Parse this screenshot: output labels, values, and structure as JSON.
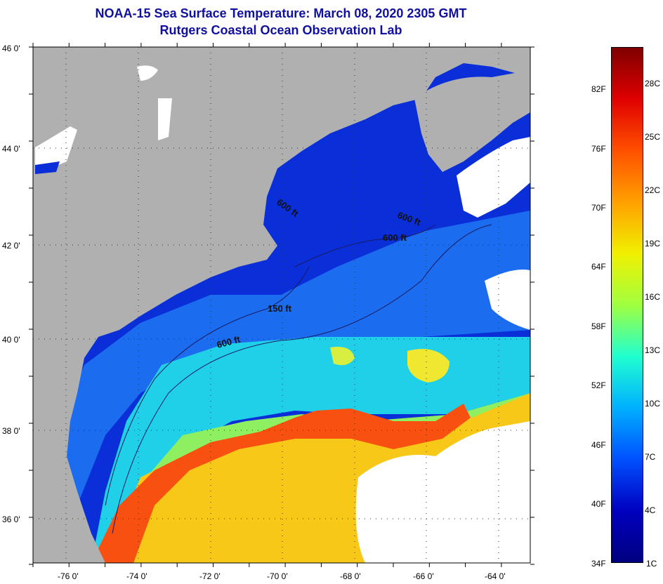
{
  "title": {
    "line1": "NOAA-15 Sea Surface Temperature:  March 08, 2020 2305 GMT",
    "line2": "Rutgers Coastal Ocean Observation Lab"
  },
  "map": {
    "lat_labels": [
      "46 0'",
      "44 0'",
      "42 0'",
      "40 0'",
      "38 0'",
      "36 0'"
    ],
    "lon_labels": [
      "-76 0'",
      "-74 0'",
      "-72 0'",
      "-70 0'",
      "-68 0'",
      "-66 0'",
      "-64 0'"
    ],
    "contour_labels": [
      "600 ft",
      "600 ft",
      "600 ft",
      "150 ft",
      "600 ft"
    ],
    "colors": {
      "land": "#b0b0b0",
      "cold": "#0a2fd8",
      "shelf": "#1c6cf0",
      "cool": "#20d0e8",
      "mid": "#f0f020",
      "warm": "#f8c818",
      "gulf_stream": "#f85010",
      "cloud": "#ffffff"
    }
  },
  "colorbar": {
    "fahrenheit_labels": [
      "82F",
      "76F",
      "70F",
      "64F",
      "58F",
      "52F",
      "46F",
      "40F",
      "34F"
    ],
    "celsius_labels": [
      "28C",
      "25C",
      "22C",
      "19C",
      "16C",
      "13C",
      "10C",
      "7C",
      "4C",
      "1C"
    ],
    "gradient": [
      "#800000",
      "#e00000",
      "#ff5000",
      "#ffa000",
      "#f0f000",
      "#a0ff40",
      "#20ffd0",
      "#00b0ff",
      "#0050ff",
      "#0000c0",
      "#000080"
    ]
  }
}
